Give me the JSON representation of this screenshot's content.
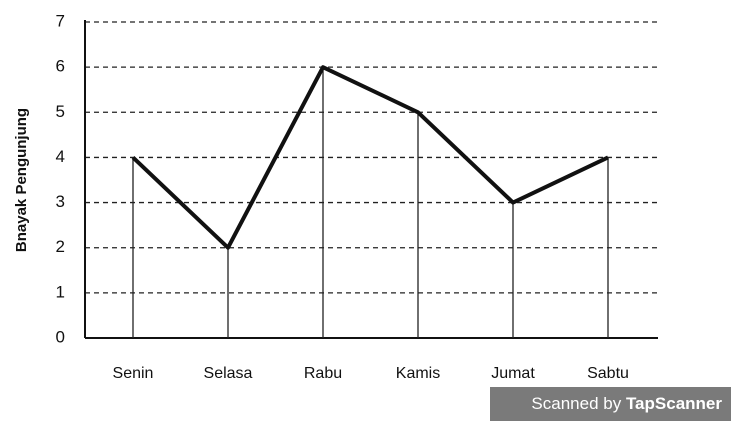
{
  "chart_data": {
    "type": "line",
    "y_label": "Bnayak Pengunjung",
    "categories": [
      "Senin",
      "Selasa",
      "Rabu",
      "Kamis",
      "Jumat",
      "Sabtu"
    ],
    "values": [
      4,
      2,
      6,
      5,
      3,
      4
    ],
    "color": "#111111",
    "ylim": [
      0,
      7
    ],
    "yticks": [
      0,
      1,
      2,
      3,
      4,
      5,
      6,
      7
    ],
    "grid": true,
    "watermark": {
      "prefix": "Scanned by",
      "brand": "TapScanner"
    }
  }
}
